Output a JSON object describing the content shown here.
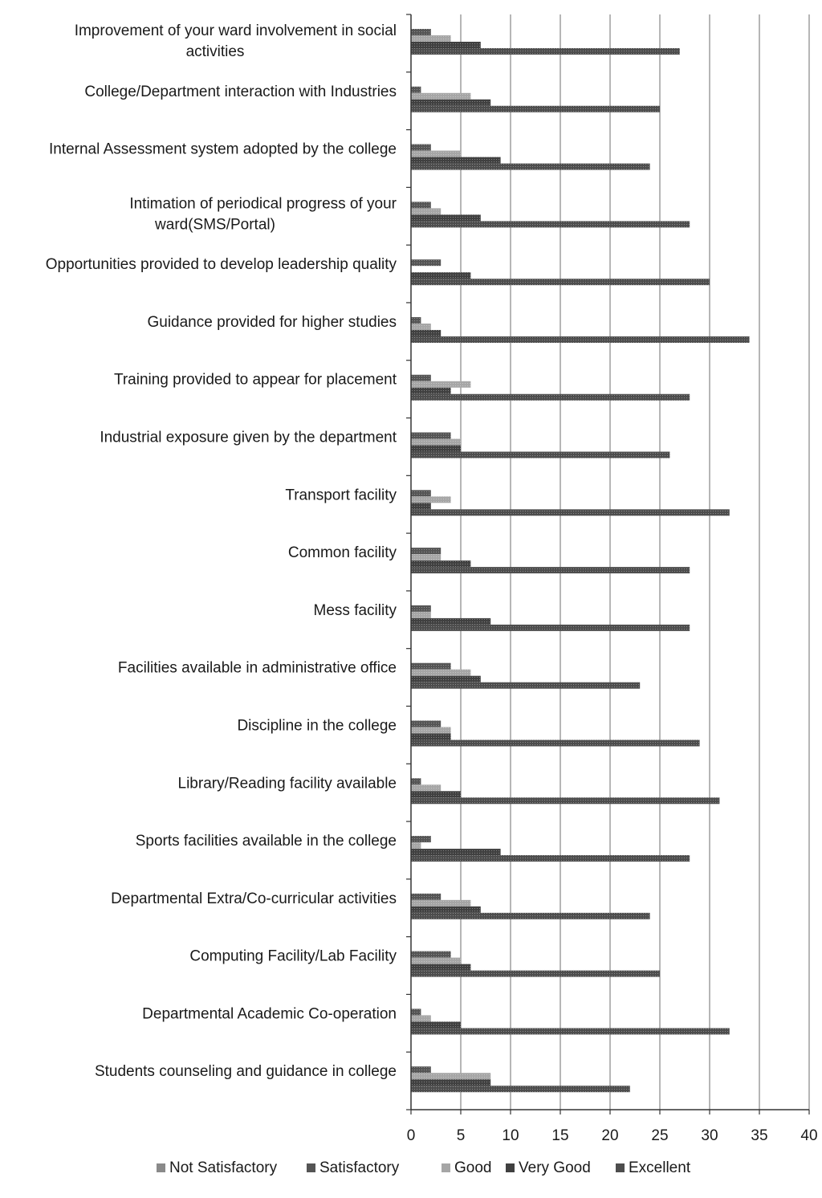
{
  "chart_data": {
    "type": "bar",
    "orientation": "horizontal",
    "categories": [
      "Improvement of your ward involvement in social activities",
      "College/Department interaction with Industries",
      "Internal Assessment system adopted by the college",
      "Intimation of periodical progress of your ward(SMS/Portal)",
      "Opportunities provided to develop leadership quality",
      "Guidance provided for higher studies",
      "Training provided to appear for placement",
      "Industrial exposure given by the department",
      "Transport facility",
      "Common facility",
      "Mess facility",
      "Facilities available in administrative office",
      "Discipline in the college",
      "Library/Reading facility available",
      "Sports facilities available in the college",
      "Departmental Extra/Co-curricular activities",
      "Computing Facility/Lab Facility",
      "Departmental Academic Co-operation",
      "Students counseling and guidance in college"
    ],
    "category_label_lines": [
      [
        "Improvement of your ward involvement in social",
        "activities"
      ],
      [
        "College/Department interaction with Industries"
      ],
      [
        "Internal Assessment system adopted by the college"
      ],
      [
        "Intimation of periodical progress of your",
        "ward(SMS/Portal)"
      ],
      [
        "Opportunities provided to develop leadership quality"
      ],
      [
        "Guidance provided for higher studies"
      ],
      [
        "Training provided to appear for placement"
      ],
      [
        "Industrial exposure given by the department"
      ],
      [
        "Transport facility"
      ],
      [
        "Common facility"
      ],
      [
        "Mess facility"
      ],
      [
        "Facilities available in administrative office"
      ],
      [
        "Discipline in the college"
      ],
      [
        "Library/Reading facility available"
      ],
      [
        "Sports facilities available in the college"
      ],
      [
        "Departmental Extra/Co-curricular activities"
      ],
      [
        "Computing Facility/Lab Facility"
      ],
      [
        "Departmental Academic Co-operation"
      ],
      [
        "Students counseling and guidance in college"
      ]
    ],
    "series": [
      {
        "name": "Not Satisfactory",
        "color": "#8a8a8a",
        "values": [
          0,
          0,
          0,
          0,
          0,
          0,
          0,
          0,
          0,
          0,
          0,
          0,
          0,
          0,
          0,
          0,
          0,
          0,
          0
        ]
      },
      {
        "name": "Satisfactory",
        "color": "#555555",
        "values": [
          2,
          1,
          2,
          2,
          3,
          1,
          2,
          4,
          2,
          3,
          2,
          4,
          3,
          1,
          2,
          3,
          4,
          1,
          2
        ]
      },
      {
        "name": "Good",
        "color": "#a6a6a6",
        "values": [
          4,
          6,
          5,
          3,
          0,
          2,
          6,
          5,
          4,
          3,
          2,
          6,
          4,
          3,
          1,
          6,
          5,
          2,
          8
        ]
      },
      {
        "name": "Very Good",
        "color": "#404040",
        "values": [
          7,
          8,
          9,
          7,
          6,
          3,
          4,
          5,
          2,
          6,
          8,
          7,
          4,
          5,
          9,
          7,
          6,
          5,
          8
        ]
      },
      {
        "name": "Excellent",
        "color": "#4d4d4d",
        "values": [
          27,
          25,
          24,
          28,
          30,
          34,
          28,
          26,
          32,
          28,
          28,
          23,
          29,
          31,
          28,
          24,
          25,
          32,
          22
        ]
      }
    ],
    "xlim": [
      0,
      40
    ],
    "xticks": [
      "0",
      "5",
      "10",
      "15",
      "20",
      "25",
      "30",
      "35",
      "40"
    ],
    "grid": "vertical",
    "legend_position": "bottom",
    "title": "",
    "xlabel": "",
    "ylabel": ""
  }
}
